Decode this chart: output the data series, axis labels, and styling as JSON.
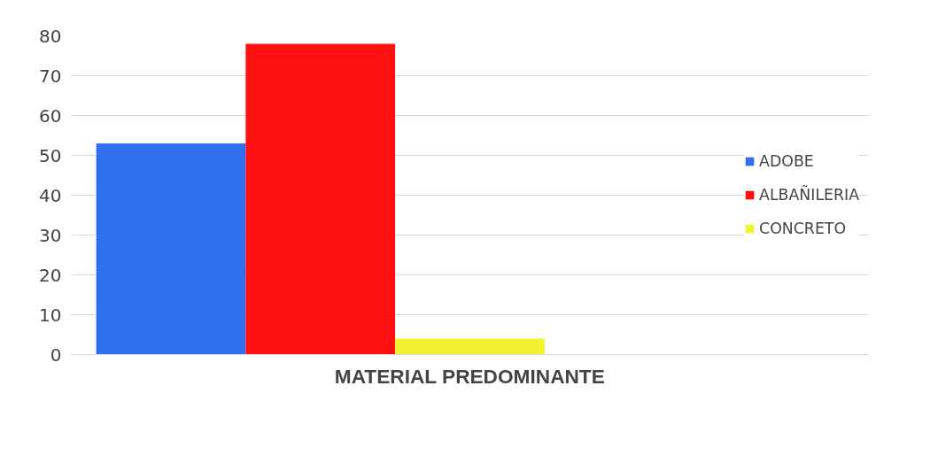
{
  "chart_data": {
    "type": "bar",
    "xlabel": "MATERIAL PREDOMINANTE",
    "categories": [
      null
    ],
    "series": [
      {
        "name": "ADOBE",
        "color": "#2f6ff0",
        "values": [
          53
        ]
      },
      {
        "name": "ALBAÑILERIA",
        "color": "#ff1010",
        "values": [
          78
        ]
      },
      {
        "name": "CONCRETO",
        "color": "#f2f230",
        "values": [
          4
        ]
      }
    ],
    "ylim": [
      0,
      80
    ],
    "yticks": [
      0,
      10,
      20,
      30,
      40,
      50,
      60,
      70,
      80
    ],
    "grid": "y",
    "legend": "right"
  }
}
